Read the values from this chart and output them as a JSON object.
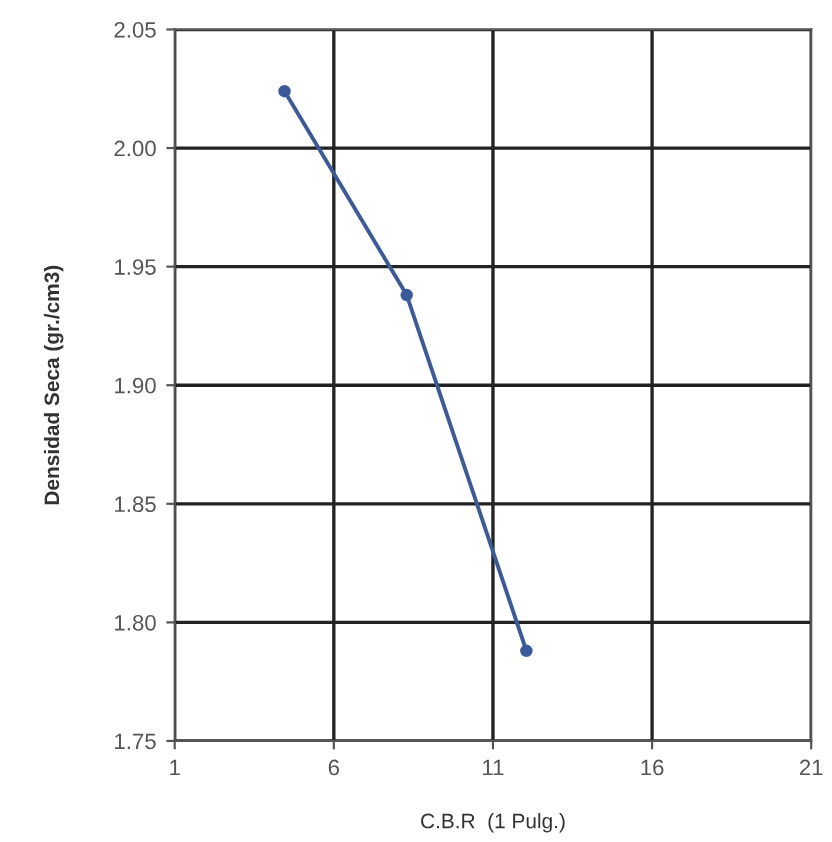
{
  "chart_data": {
    "type": "line",
    "xlabel": "C.B.R  (1 Pulg.)",
    "ylabel": "Densidad Seca (gr./cm3)",
    "x": [
      4.45,
      8.29,
      12.05
    ],
    "series": [
      {
        "color": "#3a5a9c",
        "values": [
          2.024,
          1.938,
          1.788
        ]
      }
    ],
    "xlim": [
      1,
      21
    ],
    "xticks": [
      1,
      6,
      11,
      16,
      21
    ],
    "ylim": [
      1.75,
      2.05
    ],
    "yticks": [
      {
        "value": 1.75,
        "label": "1.75"
      },
      {
        "value": 1.8,
        "label": "1.80"
      },
      {
        "value": 1.85,
        "label": "1.85"
      },
      {
        "value": 1.9,
        "label": "1.90"
      },
      {
        "value": 1.95,
        "label": "1.95"
      },
      {
        "value": 2.0,
        "label": "2.00"
      },
      {
        "value": 2.05,
        "label": "2.05"
      }
    ],
    "grid": true,
    "marker": "circle",
    "line_style": "solid",
    "legend": false
  }
}
